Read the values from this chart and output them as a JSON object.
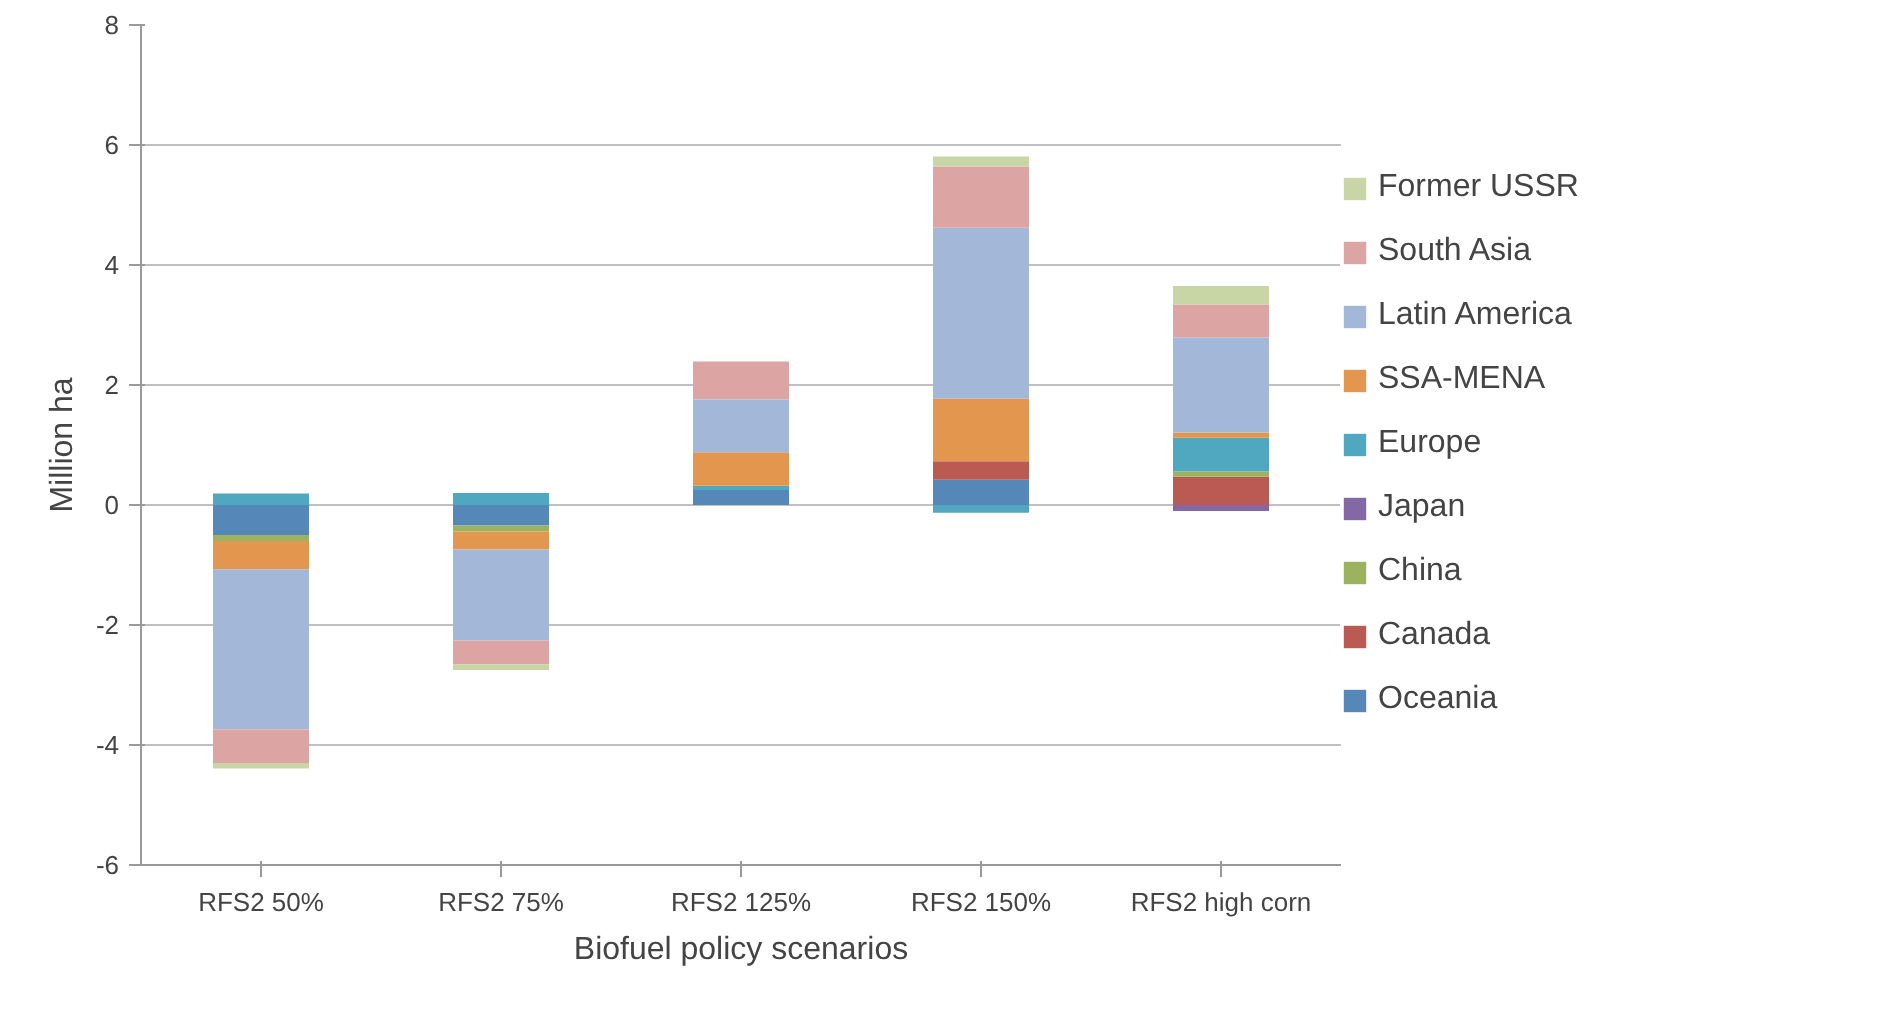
{
  "chart_data": {
    "type": "bar",
    "stacked": true,
    "xlabel": "Biofuel policy scenarios",
    "ylabel": "Million ha",
    "categories": [
      "RFS2 50%",
      "RFS2 75%",
      "RFS2 125%",
      "RFS2 150%",
      "RFS2 high corn"
    ],
    "series": [
      {
        "name": "Oceania",
        "color": "#5588b8",
        "values": [
          -0.5,
          -0.34,
          0.25,
          0.42,
          null
        ]
      },
      {
        "name": "Canada",
        "color": "#ba5a52",
        "values": [
          null,
          null,
          null,
          0.31,
          0.47
        ]
      },
      {
        "name": "China",
        "color": "#9bb25e",
        "values": [
          -0.1,
          -0.1,
          null,
          null,
          0.09
        ]
      },
      {
        "name": "Japan",
        "color": "#8468a6",
        "values": [
          null,
          null,
          null,
          null,
          -0.1
        ]
      },
      {
        "name": "Europe",
        "color": "#4fa8c0",
        "values": [
          0.19,
          0.2,
          0.07,
          -0.13,
          0.56
        ]
      },
      {
        "name": "SSA-MENA",
        "color": "#e3974e",
        "values": [
          -0.47,
          -0.3,
          0.56,
          1.04,
          0.09
        ]
      },
      {
        "name": "Latin America",
        "color": "#a3b7d9",
        "values": [
          -2.67,
          -1.52,
          0.88,
          2.85,
          1.58
        ]
      },
      {
        "name": "South Asia",
        "color": "#dca5a4",
        "values": [
          -0.56,
          -0.4,
          0.63,
          1.02,
          0.55
        ]
      },
      {
        "name": "Former USSR",
        "color": "#c8d6a6",
        "values": [
          -0.09,
          -0.09,
          null,
          0.17,
          0.31
        ]
      }
    ],
    "ylim": [
      -6,
      8
    ],
    "yticks": [
      -6,
      -4,
      -2,
      0,
      2,
      4,
      6,
      8
    ],
    "grid": "y",
    "legend": "right"
  }
}
